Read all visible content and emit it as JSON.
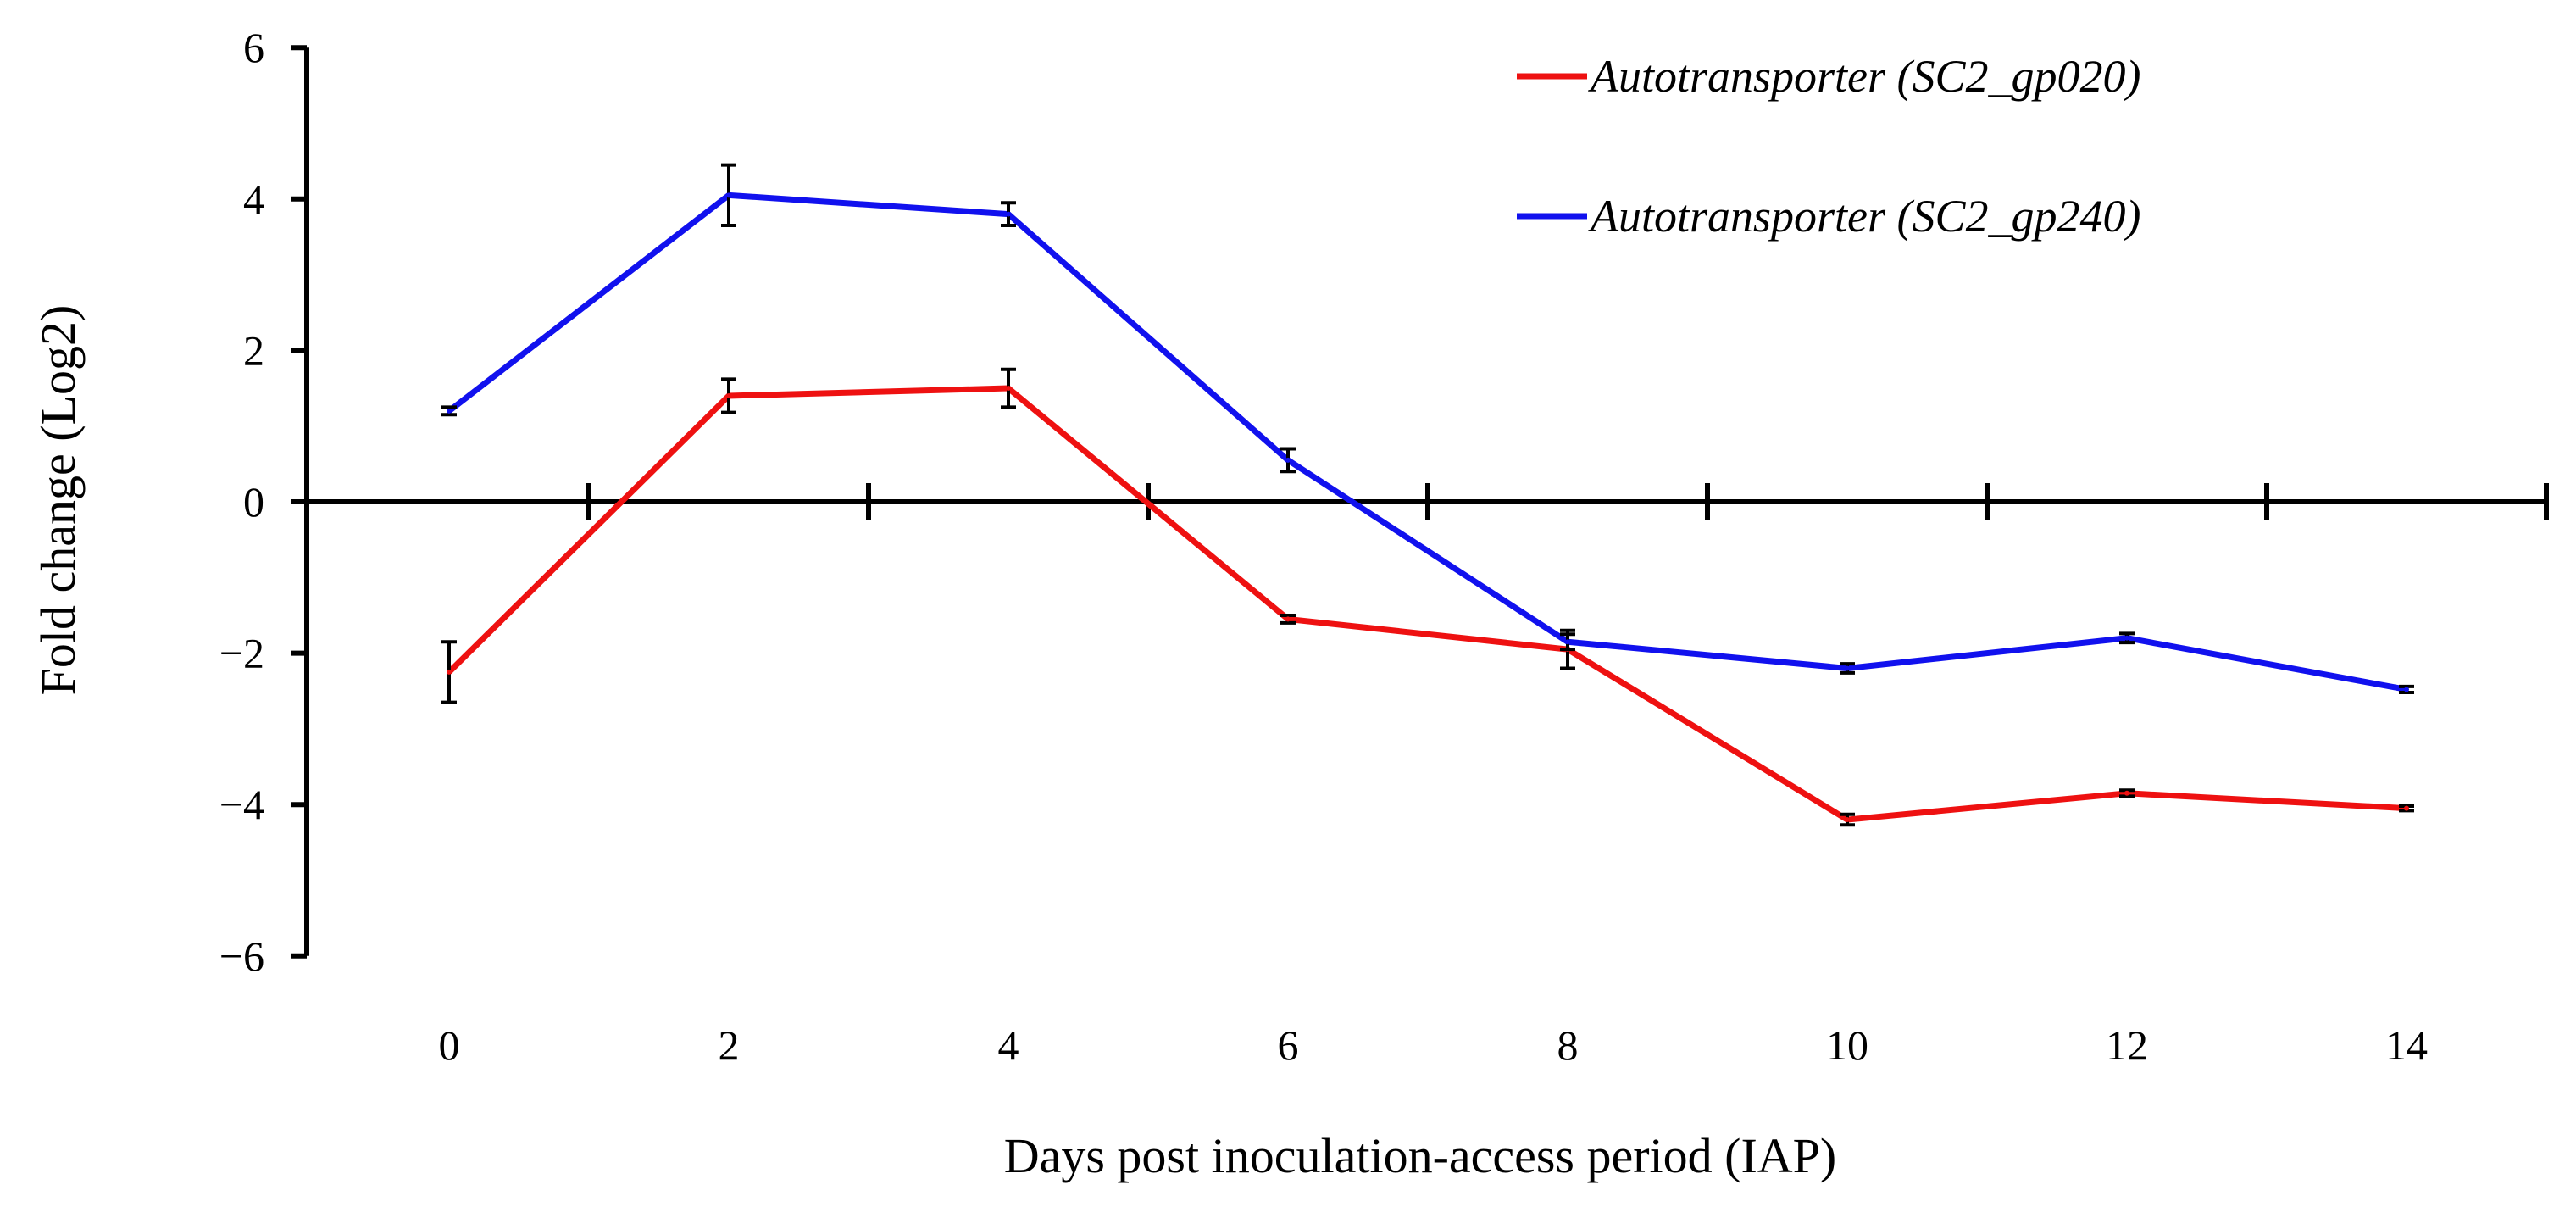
{
  "chart_data": {
    "type": "line",
    "title": "",
    "xlabel": "Days post inoculation-access period (IAP)",
    "ylabel": "Fold change (Log2)",
    "xlim": [
      -1,
      15
    ],
    "ylim": [
      -6,
      6
    ],
    "x_ticks": [
      0,
      2,
      4,
      6,
      8,
      10,
      12,
      14
    ],
    "y_ticks": [
      -6,
      -4,
      -2,
      0,
      2,
      4,
      6
    ],
    "x_tick_labels": [
      "0",
      "2",
      "4",
      "6",
      "8",
      "10",
      "12",
      "14"
    ],
    "y_tick_labels": [
      "−6",
      "−4",
      "−2",
      "0",
      "2",
      "4",
      "6"
    ],
    "zero_line_minor_ticks": [
      1,
      3,
      5,
      7,
      9,
      11,
      13,
      15
    ],
    "legend_position": "top-right",
    "series": [
      {
        "name": "Autotransporter (SC2_gp020)",
        "color": "#ee1111",
        "x": [
          0,
          2,
          4,
          6,
          8,
          10,
          12,
          14
        ],
        "y": [
          -2.25,
          1.4,
          1.5,
          -1.55,
          -1.95,
          -4.2,
          -3.85,
          -4.05
        ],
        "error": [
          0.4,
          0.22,
          0.25,
          0.05,
          0.25,
          0.07,
          0.04,
          0.03
        ]
      },
      {
        "name": "Autotransporter (SC2_gp240)",
        "color": "#1111ee",
        "x": [
          0,
          2,
          4,
          6,
          8,
          10,
          12,
          14
        ],
        "y": [
          1.2,
          4.05,
          3.8,
          0.55,
          -1.85,
          -2.2,
          -1.8,
          -2.48
        ],
        "error": [
          0.05,
          0.4,
          0.15,
          0.15,
          0.1,
          0.06,
          0.06,
          0.04
        ]
      }
    ]
  }
}
